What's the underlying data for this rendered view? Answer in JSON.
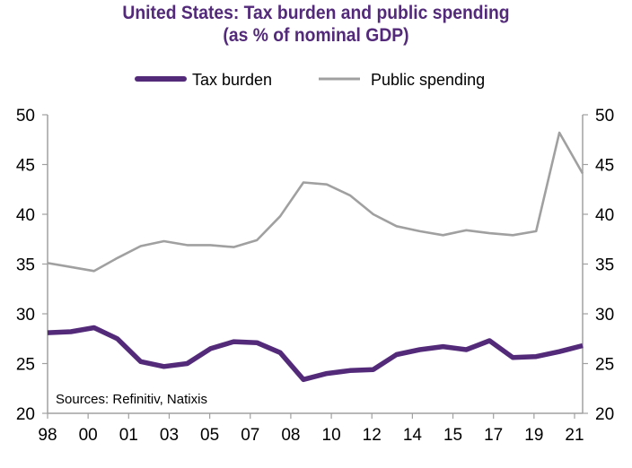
{
  "chart_data": {
    "type": "line",
    "title": "United States: Tax burden and public spending",
    "subtitle": "(as % of nominal GDP)",
    "xlabel": "",
    "ylabel": "",
    "x": [
      1998,
      1999,
      2000,
      2001,
      2002,
      2003,
      2004,
      2005,
      2006,
      2007,
      2008,
      2009,
      2010,
      2011,
      2012,
      2013,
      2014,
      2015,
      2016,
      2017,
      2018,
      2019,
      2020,
      2021
    ],
    "x_tick_labels": [
      "98",
      "00",
      "01",
      "03",
      "05",
      "07",
      "08",
      "10",
      "12",
      "14",
      "15",
      "17",
      "19",
      "21"
    ],
    "ylim": [
      20,
      50
    ],
    "y_ticks": [
      20,
      25,
      30,
      35,
      40,
      45,
      50
    ],
    "y_tick_labels": [
      "20",
      "25",
      "30",
      "35",
      "40",
      "45",
      "50"
    ],
    "dual_y_axis": true,
    "grid": false,
    "legend_position": "top-center",
    "series": [
      {
        "name": "Tax burden",
        "color": "#532a7a",
        "values": [
          28.1,
          28.2,
          28.6,
          27.5,
          25.2,
          24.7,
          25.0,
          26.5,
          27.2,
          27.1,
          26.1,
          23.4,
          24.0,
          24.3,
          24.4,
          25.9,
          26.4,
          26.7,
          26.4,
          27.3,
          25.6,
          25.7,
          26.2,
          26.8
        ]
      },
      {
        "name": "Public spending",
        "color": "#a0a0a0",
        "values": [
          35.1,
          34.7,
          34.3,
          35.6,
          36.8,
          37.3,
          36.9,
          36.9,
          36.7,
          37.4,
          39.8,
          43.2,
          43.0,
          41.9,
          40.0,
          38.8,
          38.3,
          37.9,
          38.4,
          38.1,
          37.9,
          38.3,
          48.2,
          44.1
        ]
      }
    ],
    "annotation": "Sources: Refinitiv, Natixis",
    "axis_color": "#a0a0a0"
  }
}
